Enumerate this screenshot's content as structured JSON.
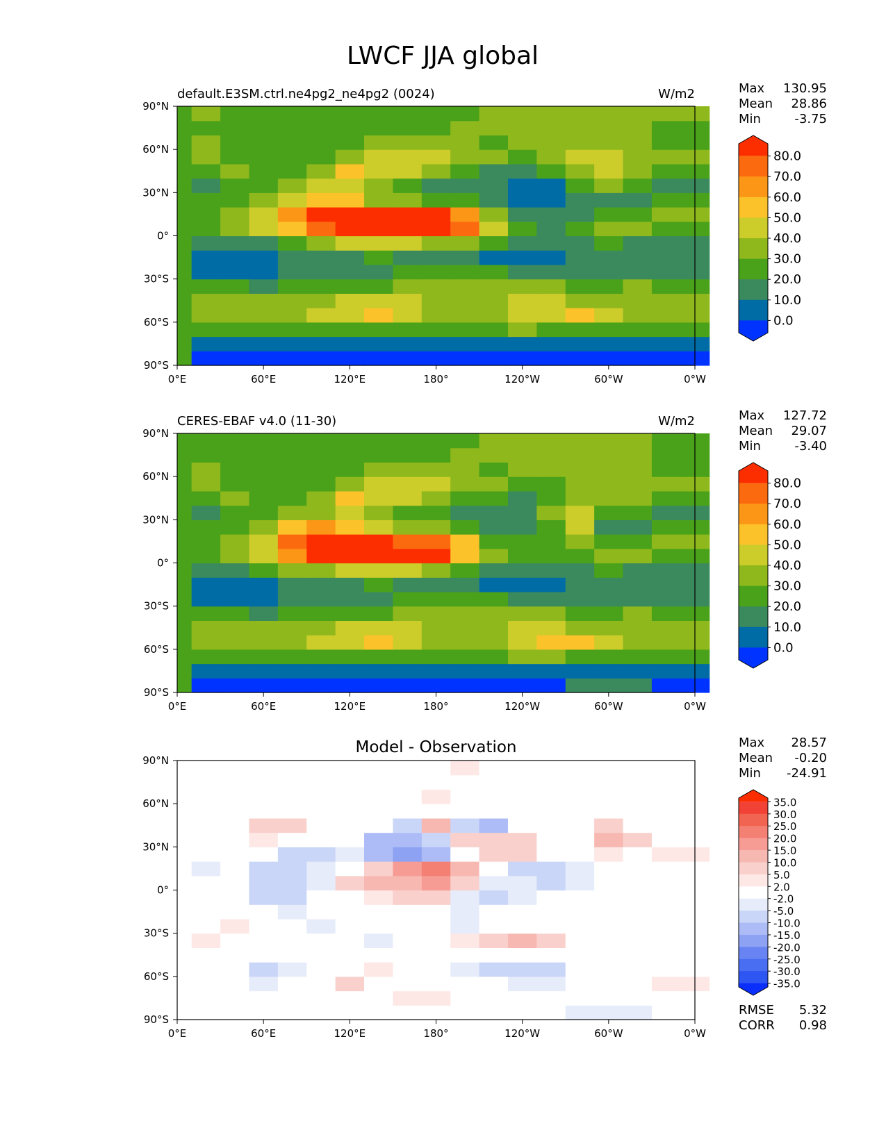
{
  "title": "LWCF JJA global",
  "lon_ticks": [
    "0°E",
    "60°E",
    "120°E",
    "180°",
    "120°W",
    "60°W",
    "0°W"
  ],
  "lat_ticks": [
    "90°N",
    "60°N",
    "30°N",
    "0°",
    "30°S",
    "60°S",
    "90°S"
  ],
  "colors": {
    "abs_levels": [
      "#0033ff",
      "#006ca6",
      "#3a8a5e",
      "#4aa21a",
      "#8fb81c",
      "#cccc2a",
      "#fcc22a",
      "#fc9616",
      "#fc6a10",
      "#fc2e00"
    ],
    "diff_levels": [
      "#0a2efc",
      "#2e56f2",
      "#4a6ef2",
      "#6884f2",
      "#8ea2f4",
      "#adbcf6",
      "#cad6f8",
      "#e6ecfa",
      "#ffffff",
      "#fde8e6",
      "#f9d0cc",
      "#f8b8b2",
      "#f69c94",
      "#f48074",
      "#f26452",
      "#f24236",
      "#fc2e00"
    ]
  },
  "chart_data": [
    {
      "type": "heatmap",
      "title": "default.E3SM.ctrl.ne4pg2_ne4pg2 (0024)",
      "units": "W/m2",
      "stats": [
        {
          "label": "Max",
          "value": "130.95"
        },
        {
          "label": "Mean",
          "value": "28.86"
        },
        {
          "label": "Min",
          "value": "-3.75"
        }
      ],
      "colorbar": {
        "levels": [
          0.0,
          10.0,
          20.0,
          30.0,
          40.0,
          50.0,
          60.0,
          70.0,
          80.0
        ],
        "labels": [
          "80.0",
          "70.0",
          "60.0",
          "50.0",
          "40.0",
          "30.0",
          "20.0",
          "10.0",
          "0.0"
        ],
        "extend": "both"
      },
      "xlim": [
        0,
        360
      ],
      "ylim": [
        -90,
        90
      ],
      "lon_centers": [
        0,
        20,
        40,
        60,
        80,
        100,
        120,
        140,
        160,
        180,
        200,
        220,
        240,
        260,
        280,
        300,
        320,
        340
      ],
      "lat_centers": [
        -85,
        -75,
        -65,
        -55,
        -45,
        -35,
        -25,
        -15,
        -5,
        5,
        15,
        25,
        35,
        45,
        55,
        65,
        75,
        85
      ],
      "values": [
        [
          -2,
          -2,
          -2,
          -2,
          -2,
          -2,
          -2,
          -2,
          -2,
          -2,
          -2,
          -2,
          -2,
          -2,
          -2,
          -2,
          -2,
          -2
        ],
        [
          8,
          8,
          8,
          8,
          8,
          8,
          8,
          8,
          8,
          8,
          8,
          8,
          8,
          8,
          8,
          8,
          8,
          8
        ],
        [
          25,
          25,
          25,
          22,
          25,
          25,
          25,
          25,
          28,
          25,
          25,
          28,
          32,
          28,
          25,
          25,
          25,
          25
        ],
        [
          35,
          36,
          38,
          35,
          36,
          40,
          45,
          52,
          45,
          38,
          35,
          38,
          45,
          48,
          55,
          40,
          35,
          35
        ],
        [
          32,
          35,
          32,
          30,
          33,
          38,
          42,
          45,
          42,
          38,
          35,
          38,
          42,
          40,
          38,
          35,
          32,
          32
        ],
        [
          28,
          25,
          22,
          18,
          20,
          22,
          25,
          28,
          30,
          32,
          35,
          38,
          35,
          30,
          25,
          28,
          30,
          28
        ],
        [
          12,
          8,
          6,
          8,
          10,
          12,
          15,
          18,
          20,
          22,
          25,
          22,
          15,
          10,
          12,
          15,
          12,
          12
        ],
        [
          10,
          8,
          6,
          8,
          12,
          15,
          18,
          20,
          18,
          15,
          12,
          8,
          6,
          8,
          10,
          12,
          10,
          10
        ],
        [
          12,
          10,
          15,
          18,
          25,
          35,
          40,
          45,
          42,
          38,
          30,
          22,
          15,
          10,
          15,
          25,
          18,
          12
        ],
        [
          25,
          22,
          30,
          40,
          55,
          75,
          90,
          95,
          95,
          90,
          70,
          45,
          25,
          15,
          20,
          30,
          30,
          25
        ],
        [
          30,
          28,
          35,
          42,
          65,
          85,
          90,
          92,
          90,
          85,
          60,
          35,
          15,
          10,
          15,
          20,
          25,
          30
        ],
        [
          22,
          20,
          28,
          35,
          45,
          55,
          50,
          38,
          35,
          28,
          22,
          15,
          8,
          8,
          15,
          12,
          10,
          22
        ],
        [
          15,
          18,
          22,
          28,
          32,
          40,
          45,
          30,
          22,
          18,
          15,
          10,
          8,
          8,
          25,
          35,
          20,
          15
        ],
        [
          22,
          25,
          30,
          25,
          22,
          35,
          55,
          48,
          42,
          30,
          22,
          18,
          15,
          20,
          35,
          40,
          30,
          22
        ],
        [
          32,
          35,
          28,
          22,
          20,
          28,
          38,
          48,
          45,
          42,
          38,
          30,
          28,
          30,
          40,
          45,
          38,
          32
        ],
        [
          28,
          30,
          28,
          25,
          22,
          25,
          28,
          32,
          35,
          32,
          30,
          28,
          30,
          32,
          35,
          38,
          35,
          28
        ],
        [
          22,
          24,
          22,
          20,
          20,
          22,
          24,
          26,
          28,
          28,
          30,
          30,
          32,
          32,
          32,
          32,
          32,
          22
        ],
        [
          30,
          30,
          28,
          28,
          28,
          28,
          28,
          28,
          28,
          28,
          28,
          32,
          35,
          35,
          35,
          35,
          35,
          30
        ]
      ]
    },
    {
      "type": "heatmap",
      "title": "CERES-EBAF v4.0 (11-30)",
      "units": "W/m2",
      "stats": [
        {
          "label": "Max",
          "value": "127.72"
        },
        {
          "label": "Mean",
          "value": "29.07"
        },
        {
          "label": "Min",
          "value": "-3.40"
        }
      ],
      "colorbar": {
        "levels": [
          0.0,
          10.0,
          20.0,
          30.0,
          40.0,
          50.0,
          60.0,
          70.0,
          80.0
        ],
        "labels": [
          "80.0",
          "70.0",
          "60.0",
          "50.0",
          "40.0",
          "30.0",
          "20.0",
          "10.0",
          "0.0"
        ],
        "extend": "both"
      },
      "xlim": [
        0,
        360
      ],
      "ylim": [
        -90,
        90
      ],
      "lon_centers": [
        0,
        20,
        40,
        60,
        80,
        100,
        120,
        140,
        160,
        180,
        200,
        220,
        240,
        260,
        280,
        300,
        320,
        340
      ],
      "lat_centers": [
        -85,
        -75,
        -65,
        -55,
        -45,
        -35,
        -25,
        -15,
        -5,
        5,
        15,
        25,
        35,
        45,
        55,
        65,
        75,
        85
      ],
      "values": [
        [
          -2,
          -2,
          -2,
          -2,
          -2,
          -2,
          -2,
          -2,
          -2,
          -2,
          -2,
          -2,
          -2,
          -2,
          12,
          12,
          12,
          -2
        ],
        [
          8,
          8,
          8,
          8,
          8,
          8,
          8,
          8,
          8,
          8,
          8,
          8,
          8,
          8,
          8,
          8,
          8,
          8
        ],
        [
          25,
          25,
          25,
          22,
          25,
          25,
          25,
          25,
          28,
          25,
          25,
          28,
          32,
          30,
          25,
          25,
          25,
          25
        ],
        [
          35,
          36,
          38,
          35,
          36,
          40,
          45,
          52,
          45,
          38,
          35,
          38,
          45,
          52,
          55,
          40,
          35,
          35
        ],
        [
          32,
          35,
          32,
          30,
          33,
          38,
          42,
          45,
          42,
          38,
          35,
          38,
          42,
          40,
          38,
          35,
          32,
          32
        ],
        [
          28,
          25,
          22,
          18,
          20,
          22,
          25,
          28,
          30,
          32,
          35,
          38,
          35,
          30,
          25,
          28,
          30,
          28
        ],
        [
          12,
          8,
          6,
          8,
          10,
          12,
          15,
          18,
          20,
          22,
          25,
          22,
          15,
          10,
          12,
          15,
          12,
          12
        ],
        [
          10,
          8,
          6,
          8,
          12,
          15,
          18,
          20,
          18,
          15,
          12,
          8,
          6,
          8,
          10,
          12,
          10,
          10
        ],
        [
          12,
          10,
          15,
          22,
          30,
          38,
          40,
          42,
          40,
          35,
          25,
          18,
          12,
          10,
          15,
          20,
          18,
          12
        ],
        [
          25,
          22,
          30,
          45,
          62,
          80,
          85,
          88,
          88,
          85,
          55,
          30,
          20,
          22,
          25,
          30,
          30,
          25
        ],
        [
          30,
          28,
          35,
          45,
          70,
          88,
          85,
          80,
          78,
          72,
          50,
          28,
          20,
          22,
          35,
          25,
          25,
          30
        ],
        [
          22,
          20,
          28,
          35,
          50,
          65,
          55,
          42,
          38,
          32,
          25,
          18,
          10,
          25,
          40,
          15,
          10,
          22
        ],
        [
          15,
          18,
          22,
          28,
          30,
          38,
          48,
          35,
          25,
          20,
          15,
          15,
          18,
          30,
          40,
          25,
          20,
          15
        ],
        [
          22,
          25,
          30,
          25,
          22,
          35,
          50,
          45,
          40,
          32,
          25,
          20,
          18,
          22,
          30,
          32,
          30,
          22
        ],
        [
          32,
          35,
          28,
          22,
          20,
          28,
          36,
          44,
          42,
          40,
          38,
          30,
          28,
          28,
          32,
          35,
          32,
          32
        ],
        [
          28,
          30,
          28,
          25,
          22,
          25,
          28,
          32,
          35,
          32,
          30,
          28,
          30,
          30,
          32,
          34,
          32,
          28
        ],
        [
          22,
          24,
          22,
          20,
          20,
          22,
          24,
          26,
          28,
          28,
          30,
          30,
          32,
          32,
          32,
          32,
          32,
          22
        ],
        [
          28,
          28,
          28,
          28,
          28,
          28,
          28,
          28,
          28,
          28,
          28,
          32,
          35,
          35,
          35,
          35,
          35,
          28
        ]
      ]
    },
    {
      "type": "heatmap",
      "title": "Model - Observation",
      "units": "",
      "stats": [
        {
          "label": "Max",
          "value": "28.57"
        },
        {
          "label": "Mean",
          "value": "-0.20"
        },
        {
          "label": "Min",
          "value": "-24.91"
        }
      ],
      "footer": [
        {
          "label": "RMSE",
          "value": "5.32"
        },
        {
          "label": "CORR",
          "value": "0.98"
        }
      ],
      "colorbar": {
        "levels": [
          -35.0,
          -30.0,
          -25.0,
          -20.0,
          -15.0,
          -10.0,
          -5.0,
          -2.0,
          2.0,
          5.0,
          10.0,
          15.0,
          20.0,
          25.0,
          30.0,
          35.0
        ],
        "labels": [
          "35.0",
          "30.0",
          "25.0",
          "20.0",
          "15.0",
          "10.0",
          "5.0",
          "2.0",
          "-2.0",
          "-5.0",
          "-10.0",
          "-15.0",
          "-20.0",
          "-25.0",
          "-30.0",
          "-35.0"
        ],
        "extend": "both"
      },
      "xlim": [
        0,
        360
      ],
      "ylim": [
        -90,
        90
      ],
      "lon_centers": [
        0,
        20,
        40,
        60,
        80,
        100,
        120,
        140,
        160,
        180,
        200,
        220,
        240,
        260,
        280,
        300,
        320,
        340
      ],
      "lat_centers": [
        -85,
        -75,
        -65,
        -55,
        -45,
        -35,
        -25,
        -15,
        -5,
        5,
        15,
        25,
        35,
        45,
        55,
        65,
        75,
        85
      ],
      "values": [
        [
          0,
          0,
          0,
          0,
          0,
          0,
          0,
          0,
          0,
          0,
          0,
          0,
          0,
          0,
          -3,
          -3,
          -3,
          0
        ],
        [
          0,
          0,
          0,
          0,
          0,
          0,
          0,
          0,
          3,
          3,
          0,
          0,
          0,
          0,
          0,
          0,
          0,
          0
        ],
        [
          4,
          0,
          0,
          -3,
          0,
          0,
          6,
          0,
          0,
          0,
          0,
          0,
          -3,
          -3,
          0,
          0,
          0,
          4
        ],
        [
          0,
          0,
          0,
          -6,
          -4,
          0,
          0,
          4,
          0,
          0,
          -3,
          -8,
          -10,
          -6,
          0,
          0,
          0,
          0
        ],
        [
          0,
          0,
          0,
          0,
          0,
          0,
          0,
          0,
          0,
          0,
          0,
          0,
          0,
          0,
          0,
          0,
          0,
          0
        ],
        [
          0,
          3,
          0,
          0,
          0,
          0,
          0,
          -3,
          0,
          0,
          4,
          8,
          12,
          6,
          0,
          0,
          0,
          0
        ],
        [
          0,
          0,
          3,
          0,
          0,
          -3,
          0,
          0,
          0,
          0,
          -4,
          0,
          0,
          0,
          0,
          0,
          0,
          0
        ],
        [
          0,
          0,
          0,
          0,
          -3,
          0,
          0,
          0,
          0,
          0,
          -3,
          0,
          0,
          0,
          0,
          0,
          0,
          0
        ],
        [
          0,
          0,
          0,
          -6,
          -6,
          0,
          0,
          3,
          6,
          8,
          -5,
          -8,
          -5,
          0,
          0,
          0,
          0,
          0
        ],
        [
          0,
          0,
          0,
          -8,
          -10,
          -5,
          8,
          12,
          12,
          18,
          8,
          -3,
          -5,
          -8,
          -5,
          0,
          0,
          0
        ],
        [
          0,
          -3,
          0,
          -8,
          -10,
          -4,
          0,
          8,
          15,
          22,
          10,
          0,
          -10,
          -8,
          -3,
          0,
          0,
          0
        ],
        [
          4,
          0,
          0,
          0,
          -10,
          -10,
          -4,
          -12,
          -18,
          -12,
          0,
          5,
          5,
          0,
          0,
          4,
          0,
          4
        ],
        [
          0,
          0,
          0,
          4,
          0,
          0,
          0,
          -12,
          -15,
          -10,
          5,
          8,
          5,
          0,
          0,
          12,
          8,
          0
        ],
        [
          0,
          0,
          0,
          8,
          6,
          0,
          0,
          0,
          -6,
          10,
          -10,
          -14,
          0,
          0,
          0,
          8,
          0,
          0
        ],
        [
          0,
          0,
          0,
          0,
          0,
          0,
          0,
          0,
          0,
          0,
          0,
          0,
          0,
          0,
          0,
          0,
          0,
          0
        ],
        [
          0,
          0,
          0,
          0,
          0,
          0,
          0,
          0,
          0,
          3,
          0,
          0,
          0,
          0,
          0,
          0,
          0,
          0
        ],
        [
          0,
          0,
          0,
          0,
          0,
          0,
          0,
          0,
          0,
          0,
          0,
          0,
          0,
          0,
          0,
          0,
          0,
          0
        ],
        [
          0,
          0,
          0,
          0,
          0,
          0,
          0,
          0,
          0,
          0,
          3,
          0,
          0,
          0,
          0,
          0,
          0,
          0
        ]
      ]
    }
  ]
}
